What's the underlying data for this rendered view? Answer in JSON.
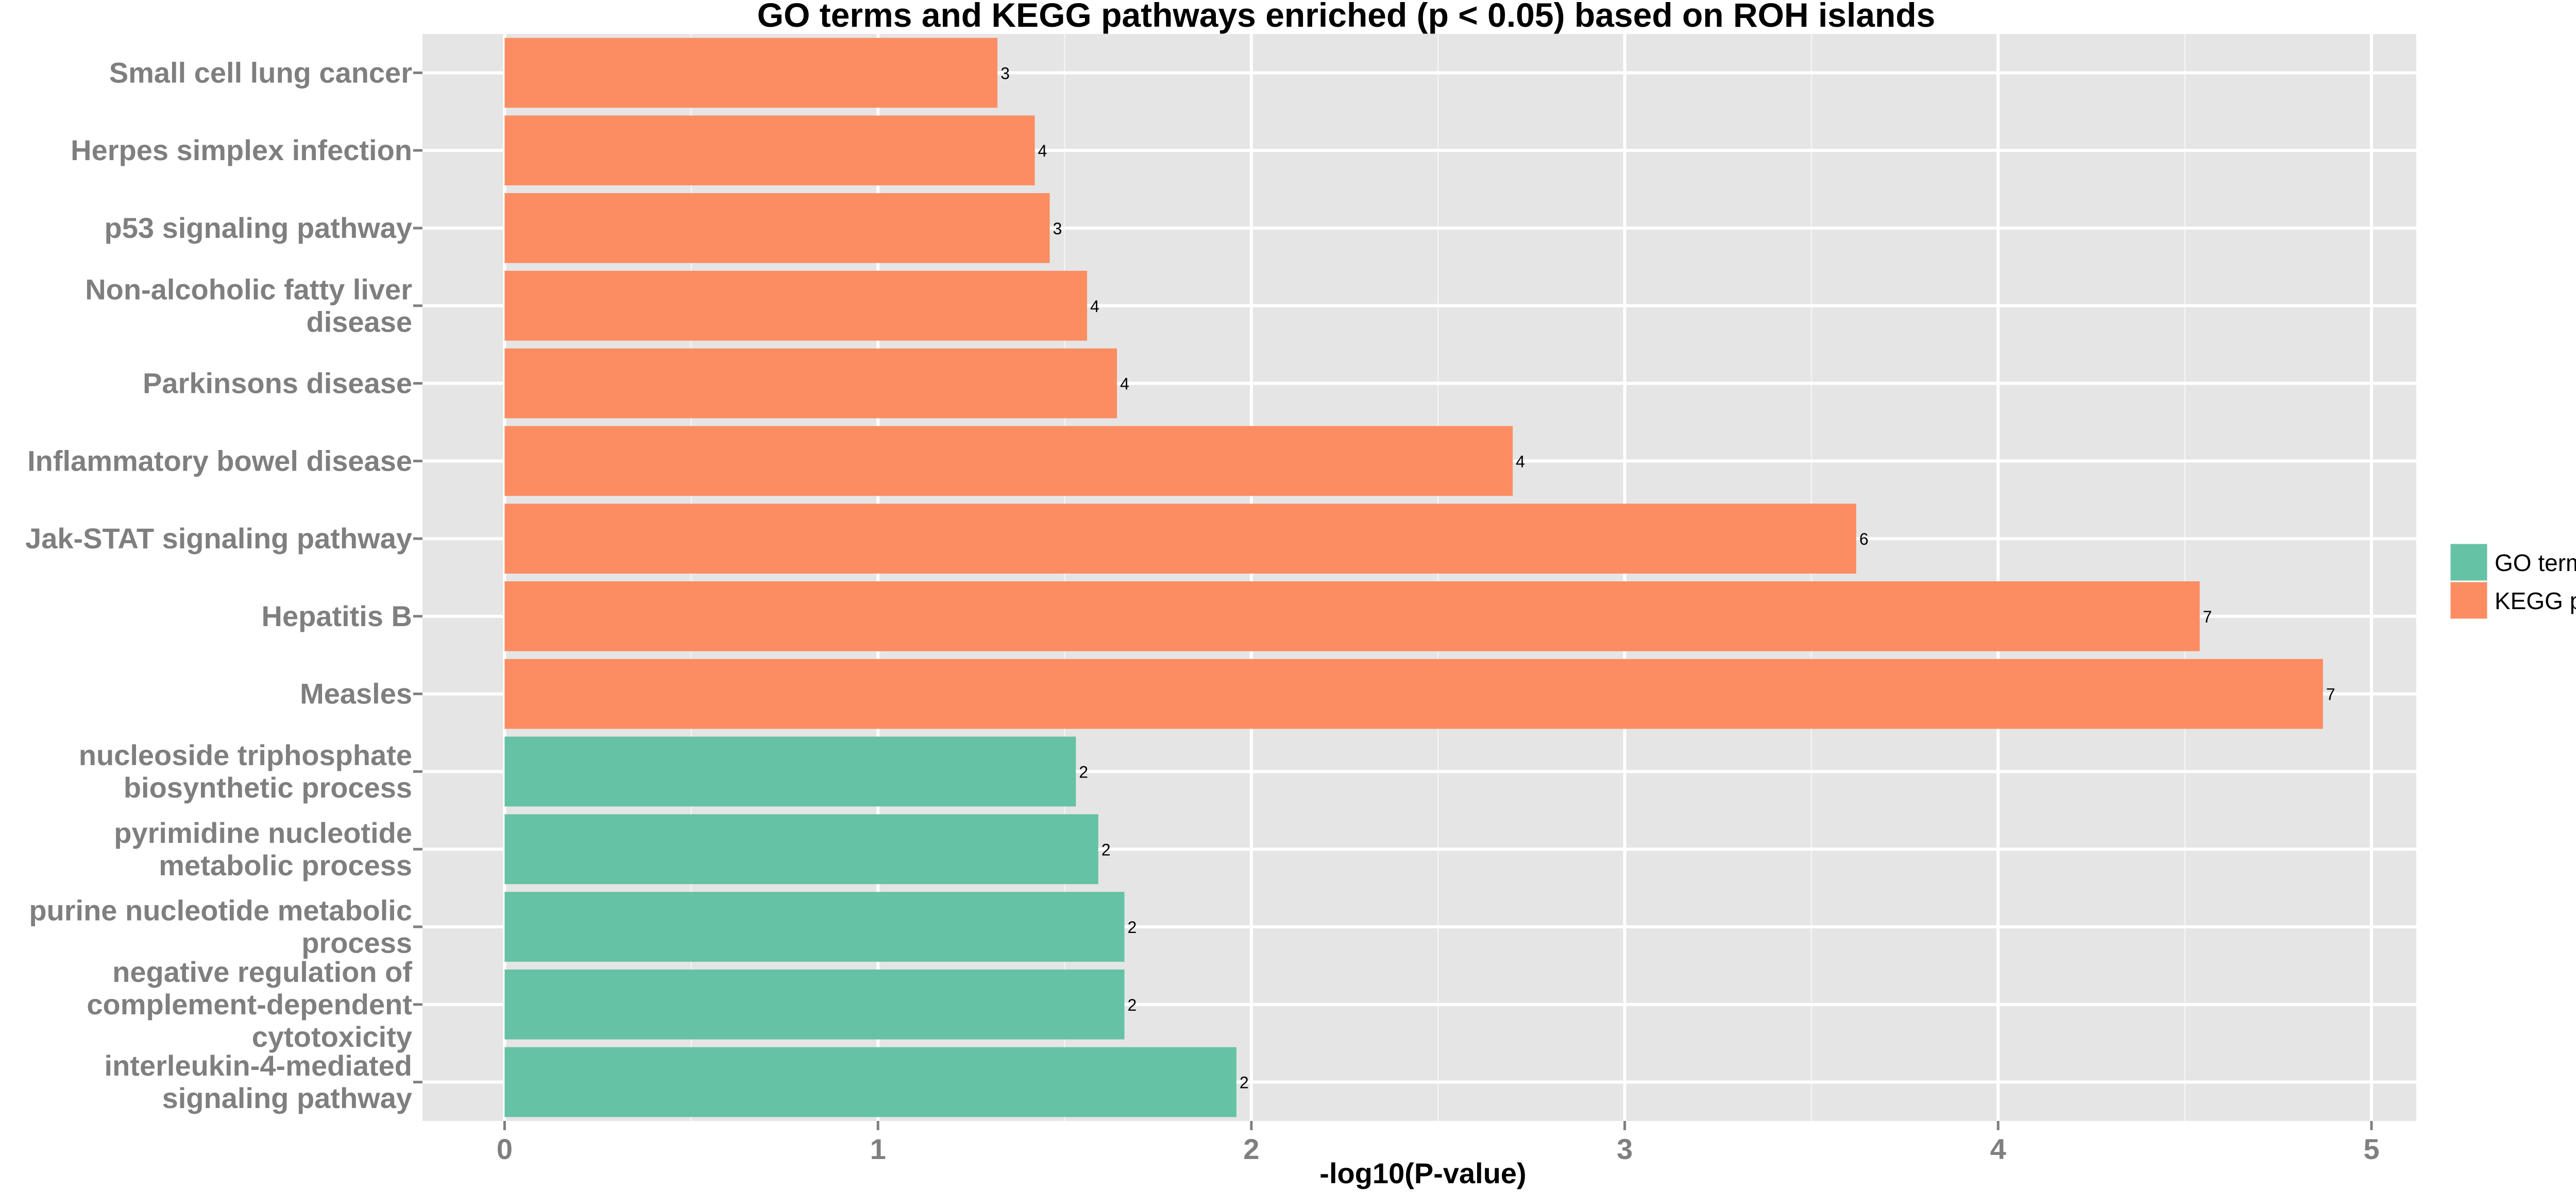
{
  "chart_data": {
    "type": "bar",
    "orientation": "horizontal",
    "title": "GO terms and KEGG pathways enriched (p < 0.05) based on ROH islands",
    "xlabel": "-log10(P-value)",
    "ylabel": "",
    "xlim": [
      -0.22,
      5.12
    ],
    "x_ticks": [
      0,
      1,
      2,
      3,
      4,
      5
    ],
    "x_tick_labels": [
      "0",
      "1",
      "2",
      "3",
      "4",
      "5"
    ],
    "grid": true,
    "legend_placement": "right",
    "legend": [
      {
        "name": "GO terms",
        "color": "#66c2a5"
      },
      {
        "name": "KEGG pathways",
        "color": "#fc8d62"
      }
    ],
    "categories": [
      {
        "label_lines": [
          "Small cell lung cancer"
        ],
        "value": 1.32,
        "count": "3",
        "group": "KEGG pathways"
      },
      {
        "label_lines": [
          "Herpes simplex infection"
        ],
        "value": 1.42,
        "count": "4",
        "group": "KEGG pathways"
      },
      {
        "label_lines": [
          "p53 signaling pathway"
        ],
        "value": 1.46,
        "count": "3",
        "group": "KEGG pathways"
      },
      {
        "label_lines": [
          "Non-alcoholic fatty liver",
          "disease"
        ],
        "value": 1.56,
        "count": "4",
        "group": "KEGG pathways"
      },
      {
        "label_lines": [
          "Parkinsons disease"
        ],
        "value": 1.64,
        "count": "4",
        "group": "KEGG pathways"
      },
      {
        "label_lines": [
          "Inflammatory bowel disease"
        ],
        "value": 2.7,
        "count": "4",
        "group": "KEGG pathways"
      },
      {
        "label_lines": [
          "Jak-STAT signaling pathway"
        ],
        "value": 3.62,
        "count": "6",
        "group": "KEGG pathways"
      },
      {
        "label_lines": [
          "Hepatitis B"
        ],
        "value": 4.54,
        "count": "7",
        "group": "KEGG pathways"
      },
      {
        "label_lines": [
          "Measles"
        ],
        "value": 4.87,
        "count": "7",
        "group": "KEGG pathways"
      },
      {
        "label_lines": [
          "nucleoside triphosphate",
          "biosynthetic process"
        ],
        "value": 1.53,
        "count": "2",
        "group": "GO terms"
      },
      {
        "label_lines": [
          "pyrimidine nucleotide",
          "metabolic process"
        ],
        "value": 1.59,
        "count": "2",
        "group": "GO terms"
      },
      {
        "label_lines": [
          "purine nucleotide metabolic",
          "process"
        ],
        "value": 1.66,
        "count": "2",
        "group": "GO terms"
      },
      {
        "label_lines": [
          "negative regulation of",
          "complement-dependent",
          "cytotoxicity"
        ],
        "value": 1.66,
        "count": "2",
        "group": "GO terms"
      },
      {
        "label_lines": [
          "interleukin-4-mediated",
          "signaling pathway"
        ],
        "value": 1.96,
        "count": "2",
        "group": "GO terms"
      }
    ]
  }
}
